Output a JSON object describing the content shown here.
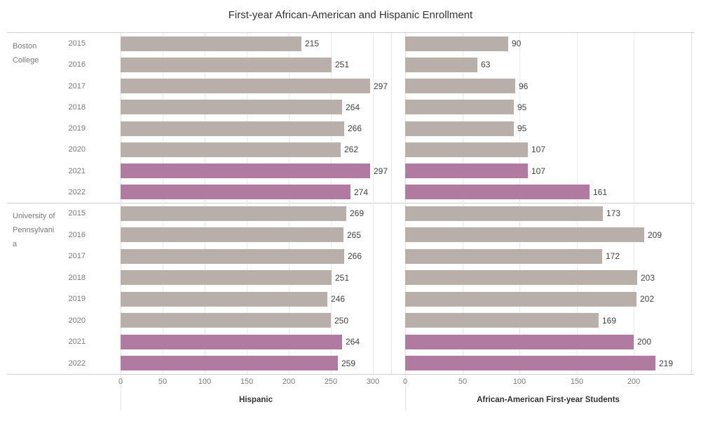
{
  "title": "First-year African-American and Hispanic Enrollment",
  "chart_data": {
    "type": "bar",
    "orientation": "horizontal",
    "title": "First-year African-American and Hispanic Enrollment",
    "categories_years": [
      "2015",
      "2016",
      "2017",
      "2018",
      "2019",
      "2020",
      "2021",
      "2022"
    ],
    "groups": [
      {
        "school": "Boston College",
        "series": [
          {
            "name": "Hispanic",
            "values": [
              215,
              251,
              297,
              264,
              266,
              262,
              297,
              274
            ]
          },
          {
            "name": "African-American First-year Students",
            "values": [
              90,
              63,
              96,
              95,
              95,
              107,
              107,
              161
            ]
          }
        ]
      },
      {
        "school": "University of Pennsylvania",
        "series": [
          {
            "name": "Hispanic",
            "values": [
              269,
              265,
              266,
              251,
              246,
              250,
              264,
              259
            ]
          },
          {
            "name": "African-American First-year Students",
            "values": [
              173,
              209,
              172,
              203,
              202,
              169,
              200,
              219
            ]
          }
        ]
      }
    ],
    "panels": [
      {
        "axis_label": "Hispanic",
        "ticks": [
          0,
          50,
          100,
          150,
          200,
          250,
          300
        ],
        "xlim": [
          0,
          322
        ]
      },
      {
        "axis_label": "African-American First-year Students",
        "ticks": [
          0,
          50,
          100,
          150,
          200
        ],
        "xlim": [
          0,
          250
        ]
      }
    ],
    "highlighted_years": [
      "2021",
      "2022"
    ],
    "colors": {
      "bar_default": "#b8afaa",
      "bar_highlight": "#b07aa1"
    },
    "grid": true,
    "value_labels": "outside-end",
    "legend": "none"
  }
}
